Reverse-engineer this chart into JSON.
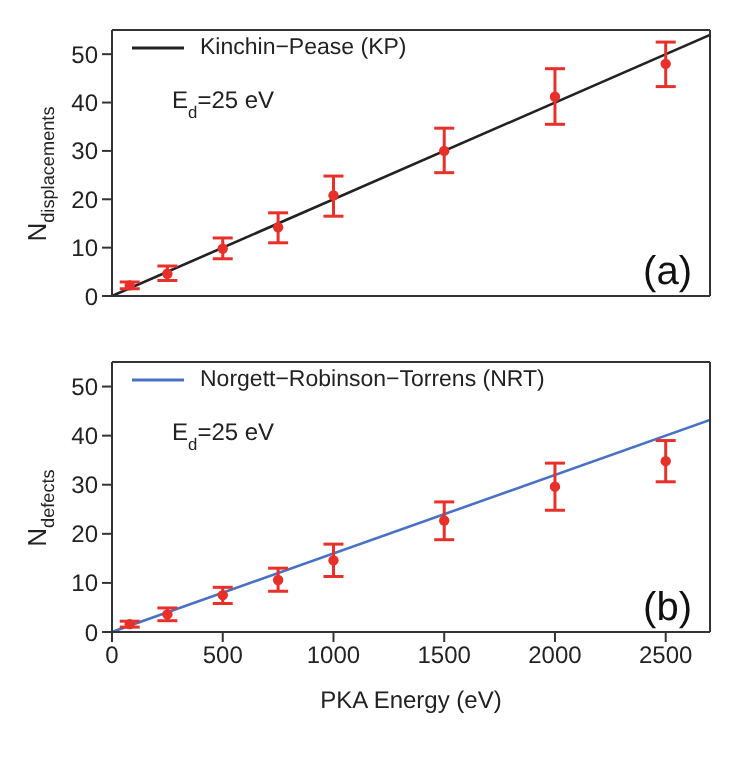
{
  "chart_data": [
    {
      "type": "scatter",
      "ylabel": "N$_{displacements}$",
      "xlim": [
        0,
        2700
      ],
      "xticks": [
        0,
        500,
        1000,
        1500,
        2000,
        2500
      ],
      "ylim": [
        0,
        55
      ],
      "yticks": [
        0,
        10,
        20,
        30,
        40,
        50
      ],
      "tick_labels": "y",
      "legend": "top left",
      "marker": "circle",
      "annotations": [
        "E$_{d}$=25 eV",
        "(a)"
      ],
      "series": [
        {
          "type": "line",
          "name": "Kinchin−Pease (KP)",
          "color": "#222222",
          "x": [
            0,
            2700
          ],
          "values": [
            0,
            54
          ],
          "marker": "none",
          "line_style": "solid"
        },
        {
          "color": "#e8302a",
          "x": [
            80,
            250,
            500,
            750,
            1000,
            1500,
            2000,
            2500
          ],
          "values": [
            2.2,
            4.6,
            9.8,
            14.2,
            20.8,
            30,
            41.2,
            48
          ],
          "errors": [
            [
              1.5,
              2.9
            ],
            [
              3.2,
              6.2
            ],
            [
              7.7,
              12
            ],
            [
              11,
              17.2
            ],
            [
              16.5,
              24.8
            ],
            [
              25.5,
              34.7
            ],
            [
              35.5,
              47
            ],
            [
              43.3,
              52.5
            ]
          ]
        }
      ]
    },
    {
      "type": "scatter",
      "xlabel": "PKA Energy (eV)",
      "ylabel": "N$_{defects}$",
      "xlim": [
        0,
        2700
      ],
      "xticks": [
        0,
        500,
        1000,
        1500,
        2000,
        2500
      ],
      "ylim": [
        0,
        55
      ],
      "yticks": [
        0,
        10,
        20,
        30,
        40,
        50
      ],
      "legend": "top left",
      "marker": "circle",
      "annotations": [
        "E$_{d}$=25 eV",
        "(b)"
      ],
      "series": [
        {
          "type": "line",
          "name": "Norgett−Robinson−Torrens (NRT)",
          "color": "#4a72c4",
          "x": [
            0,
            2700
          ],
          "values": [
            0,
            43.2
          ],
          "marker": "none",
          "line_style": "solid"
        },
        {
          "color": "#e8302a",
          "x": [
            80,
            250,
            500,
            750,
            1000,
            1500,
            2000,
            2500
          ],
          "values": [
            1.6,
            3.6,
            7.5,
            10.6,
            14.6,
            22.7,
            29.6,
            34.8
          ],
          "errors": [
            [
              1,
              2.2
            ],
            [
              2.3,
              4.9
            ],
            [
              5.8,
              9.1
            ],
            [
              8.3,
              13
            ],
            [
              11.3,
              17.9
            ],
            [
              18.8,
              26.5
            ],
            [
              24.8,
              34.4
            ],
            [
              30.6,
              39
            ]
          ]
        }
      ]
    }
  ]
}
